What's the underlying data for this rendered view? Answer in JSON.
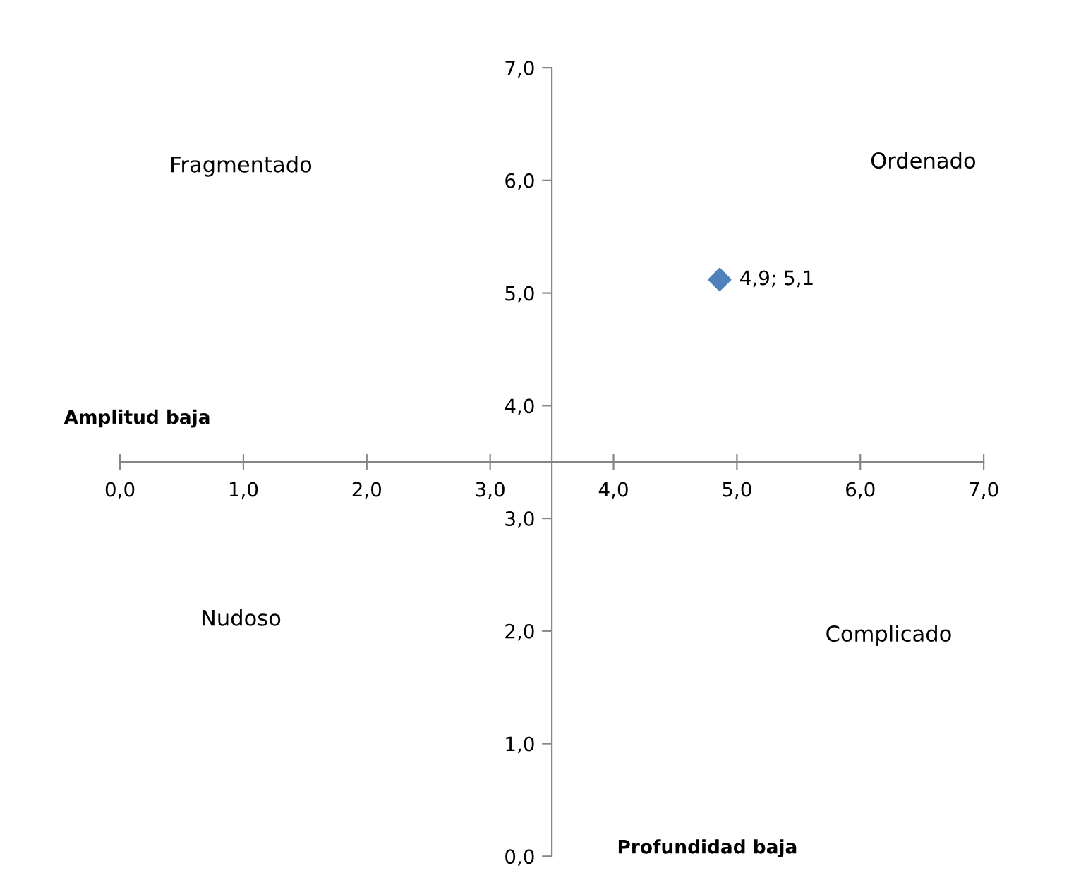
{
  "chart_data": {
    "type": "scatter",
    "annotations": [
      "Fragmentado",
      "Ordenado",
      "Nudoso",
      "Complicado",
      "Amplitud baja",
      "Profundidad baja"
    ],
    "series": [
      {
        "color": "#4f81bd",
        "x": [
          4.86
        ],
        "values": [
          5.12
        ],
        "value_labels": [
          "4,9; 5,1"
        ]
      }
    ],
    "marker": "diamond",
    "grid": false,
    "xlim": [
      0,
      7
    ],
    "ylim": [
      0,
      7
    ],
    "xticks": [
      {
        "value": 0,
        "label": "0,0"
      },
      {
        "value": 1,
        "label": "1,0"
      },
      {
        "value": 2,
        "label": "2,0"
      },
      {
        "value": 3,
        "label": "3,0"
      },
      {
        "value": 4,
        "label": "4,0"
      },
      {
        "value": 5,
        "label": "5,0"
      },
      {
        "value": 6,
        "label": "6,0"
      },
      {
        "value": 7,
        "label": "7,0"
      }
    ],
    "yticks": [
      {
        "value": 0,
        "label": "0,0"
      },
      {
        "value": 1,
        "label": "1,0"
      },
      {
        "value": 2,
        "label": "2,0"
      },
      {
        "value": 3,
        "label": "3,0"
      },
      {
        "value": 4,
        "label": "4,0"
      },
      {
        "value": 5,
        "label": "5,0"
      },
      {
        "value": 6,
        "label": "6,0"
      },
      {
        "value": 7,
        "label": "7,0"
      }
    ]
  }
}
